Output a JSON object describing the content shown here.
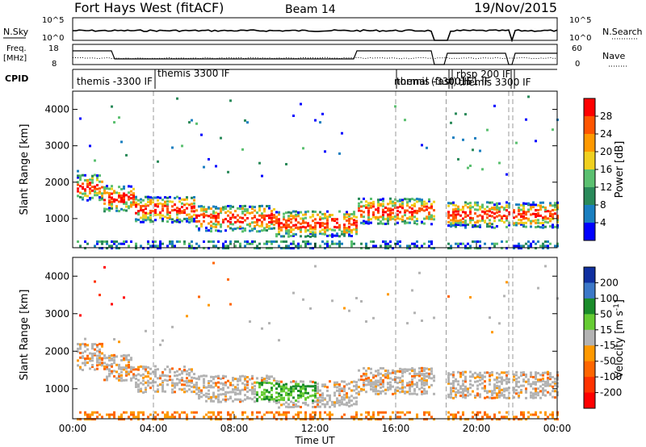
{
  "header": {
    "station": "Fort Hays West (fitACF)",
    "beam": "Beam 14",
    "date": "19/Nov/2015"
  },
  "nsky_panel": {
    "left_label": "N.Sky",
    "right_label": "N.Search",
    "y_top": "10^5",
    "y_bottom": "10^0",
    "right_y_top": "10^5",
    "right_y_bottom": "10^0"
  },
  "freq_panel": {
    "left_label_line1": "Freq.",
    "left_label_line2": "[MHz]",
    "right_label": "Nave",
    "y_top": "18",
    "y_bottom": "8",
    "right_y_top": "60",
    "right_y_bottom": "0"
  },
  "cpid_panel": {
    "label": "CPID",
    "entries": [
      "themis -3300 IF",
      "themis 3300 IF",
      "normal (fast) 151 IF",
      "themis -3300 IF",
      "rbsp 200 IF",
      "themis 3300 IF"
    ]
  },
  "colors": {
    "power": [
      "#0000ff",
      "#1a7fc0",
      "#2a8a5a",
      "#5bc070",
      "#f0d020",
      "#ff9900",
      "#ff5500",
      "#ff0000"
    ],
    "velocity": [
      "#1030a0",
      "#3c78c8",
      "#1a8c2a",
      "#66cc33",
      "#b3b3b3",
      "#ff9900",
      "#ff6600",
      "#ff3300",
      "#ff0000"
    ]
  },
  "chart_data": [
    {
      "type": "heatmap",
      "title": "",
      "xlabel": "Time UT",
      "ylabel": "Slant Range [km]",
      "x_ticks": [
        "00:00",
        "04:00",
        "08:00",
        "12:00",
        "16:00",
        "20:00",
        "00:00"
      ],
      "y_ticks": [
        "1000",
        "2000",
        "3000",
        "4000"
      ],
      "ylim": [
        200,
        4500
      ],
      "colorbar": {
        "label": "Power [dB]",
        "ticks": [
          "4",
          "8",
          "12",
          "16",
          "20",
          "24",
          "28"
        ],
        "range": [
          0,
          32
        ]
      }
    },
    {
      "type": "heatmap",
      "title": "",
      "xlabel": "Time UT",
      "ylabel": "Slant Range [km]",
      "x_ticks": [
        "00:00",
        "04:00",
        "08:00",
        "12:00",
        "16:00",
        "20:00",
        "00:00"
      ],
      "y_ticks": [
        "1000",
        "2000",
        "3000",
        "4000"
      ],
      "ylim": [
        200,
        4500
      ],
      "colorbar": {
        "label": "Velocity [m s",
        "label_superscript": "-1",
        "ticks": [
          "200",
          "100",
          "50",
          "15",
          "-15",
          "-50",
          "-100",
          "-200"
        ],
        "range": [
          -250,
          250
        ]
      }
    }
  ]
}
